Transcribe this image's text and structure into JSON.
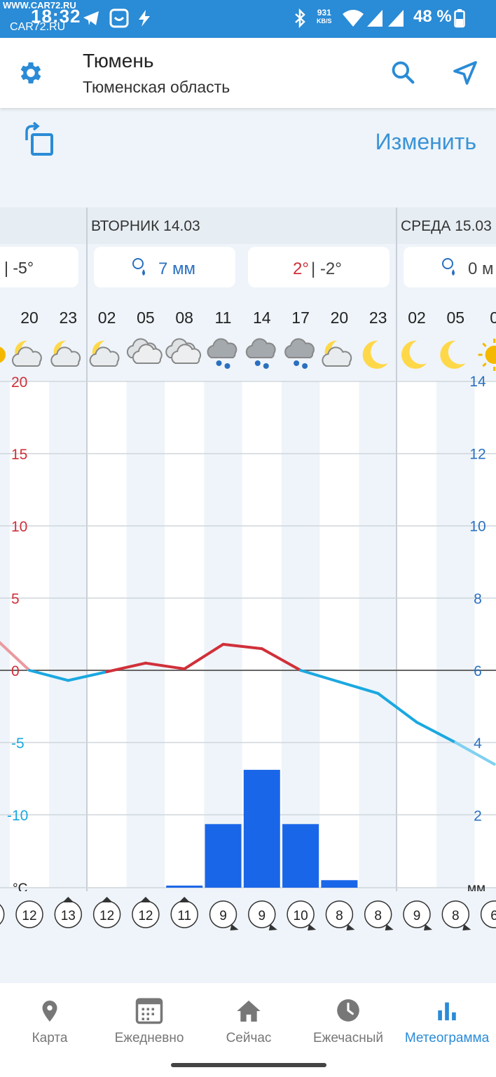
{
  "status_bar": {
    "time": "18:32",
    "watermark_top": "WWW.CAR72.RU",
    "watermark_bottom": "CAR72.RU",
    "net_speed_value": "931",
    "net_speed_unit": "KB/S",
    "battery": "48 %"
  },
  "header": {
    "city": "Тюмень",
    "region": "Тюменская область",
    "icons": [
      "gear-icon",
      "search-icon",
      "location-arrow-icon"
    ]
  },
  "toolbar": {
    "change_label": "Изменить",
    "rotate_icon": "rotate-screen-icon"
  },
  "chart_data": {
    "type": "line",
    "days": [
      {
        "label": "",
        "summary": "| -5°"
      },
      {
        "label": "ВТОРНИК 14.03",
        "summary_left_value": "7 мм",
        "summary_right_max": "2°",
        "summary_right_min": "| -2°"
      },
      {
        "label": "СРЕДА 15.03",
        "summary": "0 м"
      }
    ],
    "hours": [
      "20",
      "23",
      "02",
      "05",
      "08",
      "11",
      "14",
      "17",
      "20",
      "23",
      "02",
      "05",
      "0"
    ],
    "hour_icons": [
      "moon-cloud-icon",
      "moon-cloud-icon",
      "moon-cloud-icon",
      "cloud-icon",
      "cloud-icon",
      "cloud-snow-icon",
      "cloud-snow-icon",
      "cloud-snow-icon",
      "moon-cloud-icon",
      "moon-icon",
      "moon-icon",
      "moon-icon",
      "sun-icon"
    ],
    "left_axis": {
      "ticks": [
        "20",
        "15",
        "10",
        "5",
        "0",
        "-5",
        "-10"
      ],
      "unit": "°C",
      "range": [
        -15,
        20
      ]
    },
    "right_axis": {
      "ticks": [
        "14",
        "12",
        "10",
        "8",
        "6",
        "4",
        "2"
      ],
      "unit": "мм",
      "range": [
        0,
        14
      ]
    },
    "temperature": {
      "x": [
        "17",
        "20",
        "23",
        "02",
        "05",
        "08",
        "11",
        "14",
        "17",
        "20",
        "23",
        "02",
        "05",
        "08"
      ],
      "values": [
        2.5,
        0,
        -0.7,
        -0.1,
        0.5,
        0.1,
        1.8,
        1.5,
        0,
        -0.8,
        -1.6,
        -3.6,
        -5,
        -6.5
      ]
    },
    "precipitation": {
      "x": [
        "08",
        "11",
        "14",
        "17",
        "20"
      ],
      "values": [
        0.05,
        1.75,
        3.25,
        1.75,
        0.2
      ]
    },
    "wind": {
      "hours": [
        "",
        "20",
        "23",
        "02",
        "05",
        "08",
        "11",
        "14",
        "17",
        "20",
        "23",
        "02",
        "05",
        ""
      ],
      "values": [
        "",
        "12",
        "13",
        "12",
        "12",
        "11",
        "9",
        "9",
        "10",
        "8",
        "8",
        "9",
        "8",
        "6"
      ]
    }
  },
  "nav": {
    "items": [
      {
        "label": "Карта",
        "icon": "map-pin-icon"
      },
      {
        "label": "Ежедневно",
        "icon": "calendar-icon"
      },
      {
        "label": "Сейчас",
        "icon": "home-icon"
      },
      {
        "label": "Ежечасный",
        "icon": "clock-icon"
      },
      {
        "label": "Метеограмма",
        "icon": "bar-chart-icon"
      }
    ],
    "active": 4
  },
  "colors": {
    "brand": "#2a8bd6",
    "temp_positive": "#d0303a",
    "temp_negative": "#1ba8e0",
    "precip": "#1a66e8",
    "axis_red": "#d0303a",
    "axis_blue": "#2a70c0"
  }
}
